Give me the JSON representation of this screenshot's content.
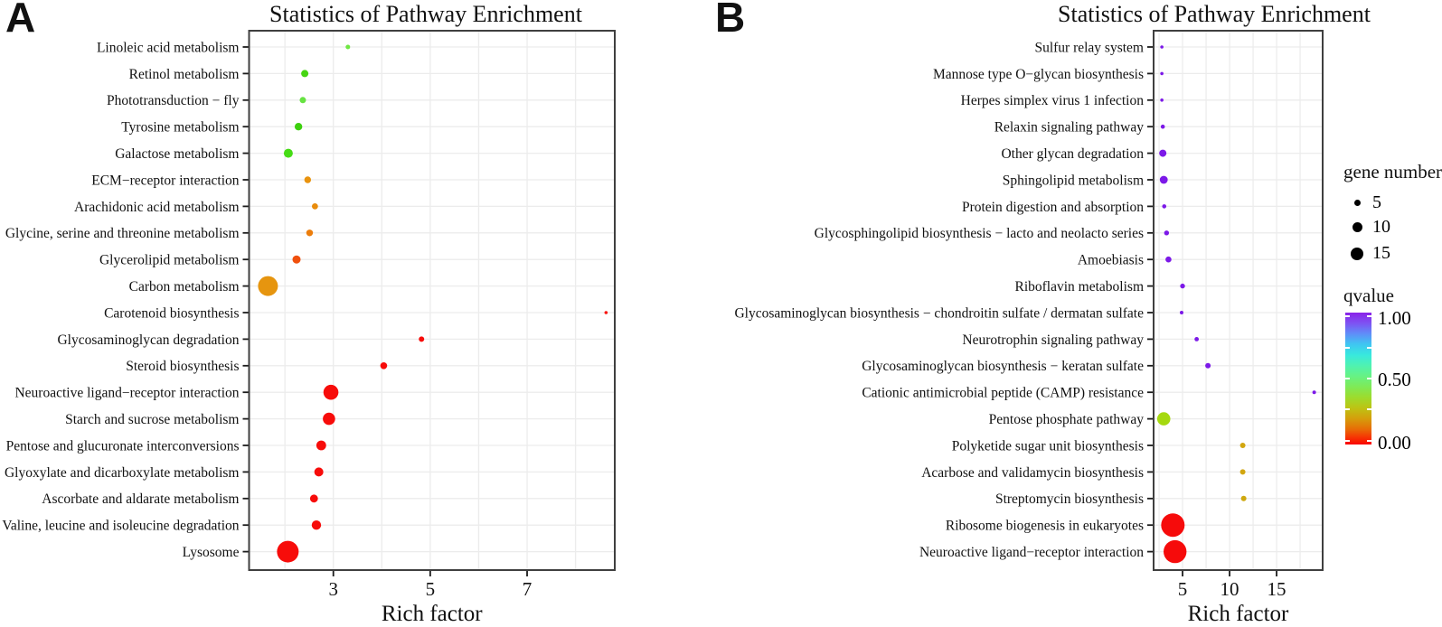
{
  "panels": {
    "a_label": "A",
    "b_label": "B"
  },
  "legend": {
    "gene_number": {
      "title": "gene number",
      "items": [
        "5",
        "10",
        "15"
      ]
    },
    "qvalue": {
      "title": "qvalue",
      "tick_labels": [
        "1.00",
        "0.50",
        "0.00"
      ]
    }
  },
  "colors": {
    "purple": "#7c19e8",
    "red": "#f60b0b",
    "orange": "#e9930e",
    "green": "#46d512",
    "yellow_green": "#a5d90f",
    "mustard": "#d2a60f"
  },
  "chart_data": [
    {
      "type": "scatter",
      "title": "Statistics of Pathway Enrichment",
      "xlabel": "Rich factor",
      "xlim": [
        1.26,
        8.81
      ],
      "x_ticks": [
        3,
        5,
        7
      ],
      "x_gridlines": [
        2,
        3,
        4,
        5,
        6,
        7,
        8
      ],
      "grid": "on",
      "points": [
        {
          "name": "Linoleic acid metabolism",
          "rich_factor": 3.3,
          "radius_px": 2.5,
          "color": "#6fe743"
        },
        {
          "name": "Retinol metabolism",
          "rich_factor": 2.41,
          "radius_px": 4.0,
          "color": "#46d512"
        },
        {
          "name": "Phototransduction − fly",
          "rich_factor": 2.37,
          "radius_px": 3.5,
          "color": "#67e342"
        },
        {
          "name": "Tyrosine metabolism",
          "rich_factor": 2.28,
          "radius_px": 4.2,
          "color": "#3dd00e"
        },
        {
          "name": "Galactose metabolism",
          "rich_factor": 2.07,
          "radius_px": 5.0,
          "color": "#46dc15"
        },
        {
          "name": "ECM−receptor interaction",
          "rich_factor": 2.47,
          "radius_px": 3.7,
          "color": "#e9930e"
        },
        {
          "name": "Arachidonic acid metabolism",
          "rich_factor": 2.62,
          "radius_px": 3.4,
          "color": "#e98c0c"
        },
        {
          "name": "Glycine, serine and threonine metabolism",
          "rich_factor": 2.51,
          "radius_px": 3.7,
          "color": "#ec7d0b"
        },
        {
          "name": "Glycerolipid metabolism",
          "rich_factor": 2.24,
          "radius_px": 4.5,
          "color": "#f0500d"
        },
        {
          "name": "Carbon metabolism",
          "rich_factor": 1.65,
          "radius_px": 11.0,
          "color": "#e6950f"
        },
        {
          "name": "Carotenoid biosynthesis",
          "rich_factor": 8.63,
          "radius_px": 1.8,
          "color": "#f8150f"
        },
        {
          "name": "Glycosaminoglycan degradation",
          "rich_factor": 4.82,
          "radius_px": 3.0,
          "color": "#f70c0a"
        },
        {
          "name": "Steroid biosynthesis",
          "rich_factor": 4.04,
          "radius_px": 3.8,
          "color": "#f70c0a"
        },
        {
          "name": "Neuroactive ligand−receptor interaction",
          "rich_factor": 2.95,
          "radius_px": 8.3,
          "color": "#f70c0a"
        },
        {
          "name": "Starch and sucrose metabolism",
          "rich_factor": 2.91,
          "radius_px": 6.8,
          "color": "#f70c0a"
        },
        {
          "name": "Pentose and glucuronate interconversions",
          "rich_factor": 2.75,
          "radius_px": 5.4,
          "color": "#f70c0a"
        },
        {
          "name": "Glyoxylate and dicarboxylate metabolism",
          "rich_factor": 2.7,
          "radius_px": 5.0,
          "color": "#f70c0a"
        },
        {
          "name": "Ascorbate and aldarate metabolism",
          "rich_factor": 2.6,
          "radius_px": 4.4,
          "color": "#f70c0a"
        },
        {
          "name": "Valine, leucine and isoleucine degradation",
          "rich_factor": 2.65,
          "radius_px": 5.2,
          "color": "#f70c0a"
        },
        {
          "name": "Lysosome",
          "rich_factor": 2.06,
          "radius_px": 12.0,
          "color": "#f70c0a"
        }
      ]
    },
    {
      "type": "scatter",
      "title": "Statistics of Pathway Enrichment",
      "xlabel": "Rich factor",
      "xlim": [
        1.92,
        19.9
      ],
      "x_ticks": [
        5,
        10,
        15
      ],
      "x_gridlines": [
        2.5,
        5,
        7.5,
        10,
        12.5,
        15,
        17.5
      ],
      "grid": "on",
      "points": [
        {
          "name": "Sulfur relay system",
          "rich_factor": 2.8,
          "radius_px": 1.8,
          "color": "#7c19e8"
        },
        {
          "name": "Mannose type O−glycan biosynthesis",
          "rich_factor": 2.8,
          "radius_px": 1.8,
          "color": "#7c19e8"
        },
        {
          "name": "Herpes simplex virus 1 infection",
          "rich_factor": 2.8,
          "radius_px": 1.8,
          "color": "#7c19e8"
        },
        {
          "name": "Relaxin signaling pathway",
          "rich_factor": 2.9,
          "radius_px": 2.3,
          "color": "#7c19e8"
        },
        {
          "name": "Other glycan degradation",
          "rich_factor": 2.9,
          "radius_px": 4.0,
          "color": "#7c19e8"
        },
        {
          "name": "Sphingolipid metabolism",
          "rich_factor": 3.0,
          "radius_px": 4.4,
          "color": "#7c19e8"
        },
        {
          "name": "Protein digestion and absorption",
          "rich_factor": 3.05,
          "radius_px": 2.3,
          "color": "#7c19e8"
        },
        {
          "name": "Glycosphingolipid biosynthesis − lacto and neolacto series",
          "rich_factor": 3.3,
          "radius_px": 2.7,
          "color": "#7c19e8"
        },
        {
          "name": "Amoebiasis",
          "rich_factor": 3.5,
          "radius_px": 3.3,
          "color": "#7c19e8"
        },
        {
          "name": "Riboflavin metabolism",
          "rich_factor": 5.0,
          "radius_px": 2.7,
          "color": "#7c19e8"
        },
        {
          "name": "Glycosaminoglycan biosynthesis − chondroitin sulfate / dermatan sulfate",
          "rich_factor": 4.9,
          "radius_px": 2.0,
          "color": "#7c19e8"
        },
        {
          "name": "Neurotrophin signaling pathway",
          "rich_factor": 6.5,
          "radius_px": 2.4,
          "color": "#7c19e8"
        },
        {
          "name": "Glycosaminoglycan biosynthesis − keratan sulfate",
          "rich_factor": 7.7,
          "radius_px": 3.0,
          "color": "#7c19e8"
        },
        {
          "name": "Cationic antimicrobial peptide (CAMP) resistance",
          "rich_factor": 19.0,
          "radius_px": 2.0,
          "color": "#7c19e8"
        },
        {
          "name": "Pentose phosphate pathway",
          "rich_factor": 3.0,
          "radius_px": 7.3,
          "color": "#a5d90f"
        },
        {
          "name": "Polyketide sugar unit biosynthesis",
          "rich_factor": 11.4,
          "radius_px": 3.0,
          "color": "#d2a60f"
        },
        {
          "name": "Acarbose and validamycin biosynthesis",
          "rich_factor": 11.4,
          "radius_px": 3.0,
          "color": "#d2a60f"
        },
        {
          "name": "Streptomycin biosynthesis",
          "rich_factor": 11.5,
          "radius_px": 3.0,
          "color": "#cfa80e"
        },
        {
          "name": "Ribosome biogenesis in eukaryotes",
          "rich_factor": 3.97,
          "radius_px": 13.0,
          "color": "#f60b0b"
        },
        {
          "name": "Neuroactive ligand−receptor interaction",
          "rich_factor": 4.2,
          "radius_px": 12.7,
          "color": "#f60b0b"
        }
      ]
    }
  ]
}
